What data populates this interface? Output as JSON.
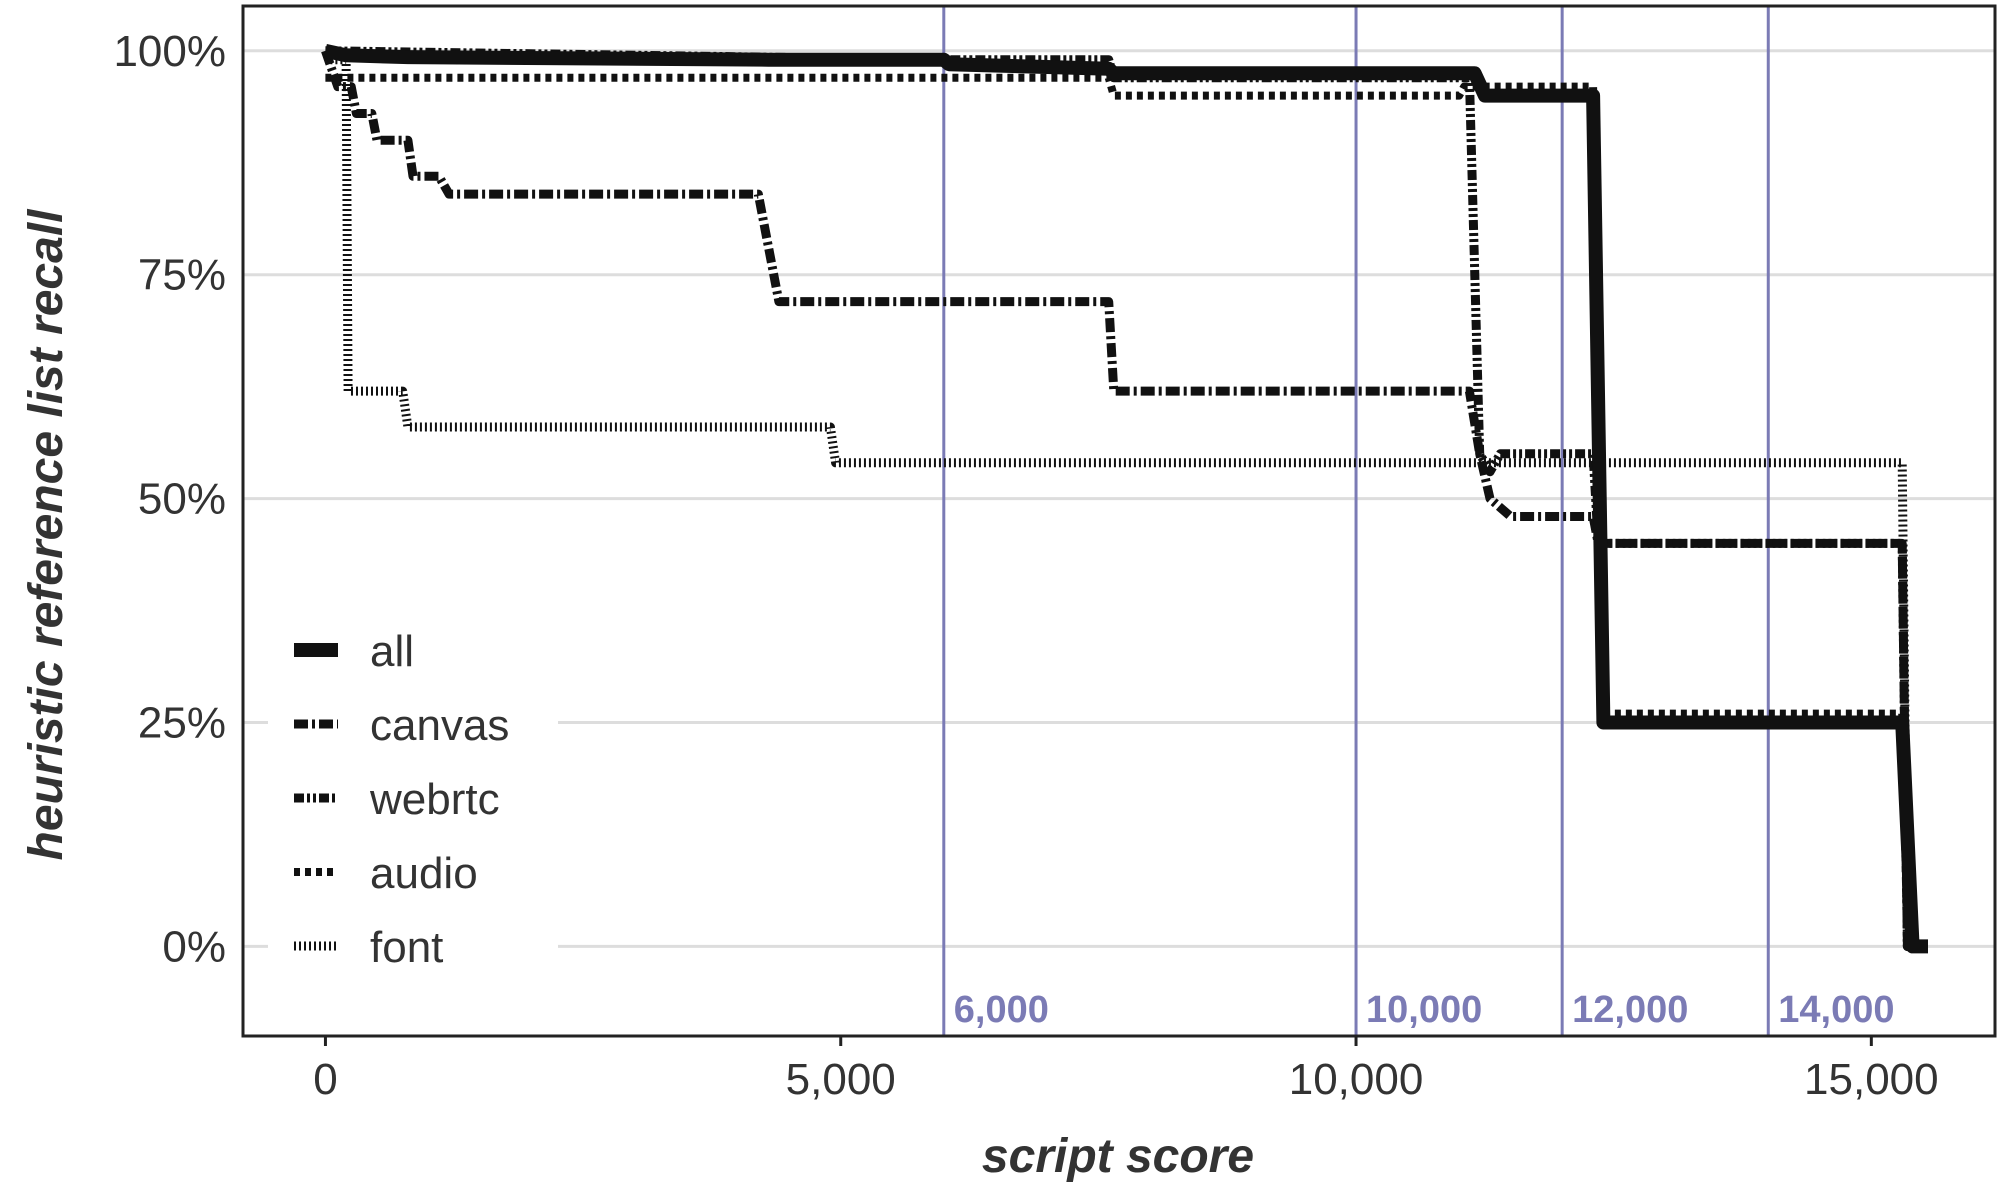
{
  "chart_data": {
    "type": "line",
    "title": "",
    "xlabel": "script score",
    "ylabel": "heuristic reference list recall",
    "xlim": [
      -800,
      16200
    ],
    "ylim": [
      -0.1,
      1.05
    ],
    "x_ticks": [
      {
        "value": 0,
        "label": "0"
      },
      {
        "value": 5000,
        "label": "5,000"
      },
      {
        "value": 10000,
        "label": "10,000"
      },
      {
        "value": 15000,
        "label": "15,000"
      }
    ],
    "y_ticks": [
      {
        "value": 0,
        "label": "0%"
      },
      {
        "value": 0.25,
        "label": "25%"
      },
      {
        "value": 0.5,
        "label": "50%"
      },
      {
        "value": 0.75,
        "label": "75%"
      },
      {
        "value": 1.0,
        "label": "100%"
      }
    ],
    "grid": true,
    "legend_position": "bottom-left",
    "reference_lines": [
      {
        "x": 6000,
        "label": "6,000"
      },
      {
        "x": 10000,
        "label": "10,000"
      },
      {
        "x": 12000,
        "label": "12,000"
      },
      {
        "x": 14000,
        "label": "14,000"
      }
    ],
    "reference_color": "#7b7bb5",
    "series": [
      {
        "name": "all",
        "style": "solid-thick",
        "points": [
          [
            0,
            1.0
          ],
          [
            200,
            0.995
          ],
          [
            800,
            0.993
          ],
          [
            4300,
            0.99
          ],
          [
            6000,
            0.99
          ],
          [
            6050,
            0.985
          ],
          [
            7600,
            0.98
          ],
          [
            7650,
            0.975
          ],
          [
            11150,
            0.975
          ],
          [
            11250,
            0.95
          ],
          [
            12300,
            0.95
          ],
          [
            12400,
            0.25
          ],
          [
            15300,
            0.25
          ],
          [
            15400,
            0.0
          ],
          [
            15550,
            0.0
          ]
        ]
      },
      {
        "name": "canvas",
        "style": "dash-dot",
        "points": [
          [
            0,
            1.0
          ],
          [
            120,
            0.96
          ],
          [
            250,
            0.96
          ],
          [
            300,
            0.93
          ],
          [
            450,
            0.93
          ],
          [
            500,
            0.9
          ],
          [
            800,
            0.9
          ],
          [
            850,
            0.86
          ],
          [
            1100,
            0.86
          ],
          [
            1200,
            0.84
          ],
          [
            4200,
            0.84
          ],
          [
            4300,
            0.78
          ],
          [
            4400,
            0.72
          ],
          [
            7600,
            0.72
          ],
          [
            7650,
            0.62
          ],
          [
            11100,
            0.62
          ],
          [
            11200,
            0.55
          ],
          [
            11300,
            0.5
          ],
          [
            11500,
            0.48
          ],
          [
            12000,
            0.48
          ],
          [
            12300,
            0.48
          ],
          [
            12350,
            0.45
          ],
          [
            15300,
            0.45
          ],
          [
            15350,
            0.0
          ],
          [
            15500,
            0.0
          ]
        ]
      },
      {
        "name": "webrtc",
        "style": "dash-dot-dot",
        "points": [
          [
            0,
            1.0
          ],
          [
            6000,
            0.99
          ],
          [
            7600,
            0.99
          ],
          [
            7650,
            0.97
          ],
          [
            11100,
            0.97
          ],
          [
            11200,
            0.55
          ],
          [
            11300,
            0.53
          ],
          [
            11400,
            0.55
          ],
          [
            12300,
            0.55
          ],
          [
            12350,
            0.45
          ],
          [
            15300,
            0.45
          ],
          [
            15350,
            0.0
          ],
          [
            15500,
            0.0
          ]
        ]
      },
      {
        "name": "audio",
        "style": "dotted-heavy",
        "points": [
          [
            0,
            0.97
          ],
          [
            7600,
            0.97
          ],
          [
            7650,
            0.95
          ],
          [
            11000,
            0.95
          ],
          [
            11050,
            0.96
          ],
          [
            12300,
            0.96
          ],
          [
            12400,
            0.26
          ],
          [
            15300,
            0.26
          ],
          [
            15350,
            0.0
          ],
          [
            15500,
            0.0
          ]
        ]
      },
      {
        "name": "font",
        "style": "fine-dotted",
        "points": [
          [
            0,
            0.99
          ],
          [
            200,
            0.99
          ],
          [
            220,
            0.62
          ],
          [
            750,
            0.62
          ],
          [
            800,
            0.58
          ],
          [
            4900,
            0.58
          ],
          [
            4950,
            0.54
          ],
          [
            15300,
            0.54
          ],
          [
            15350,
            0.0
          ],
          [
            15500,
            0.0
          ]
        ]
      }
    ]
  }
}
